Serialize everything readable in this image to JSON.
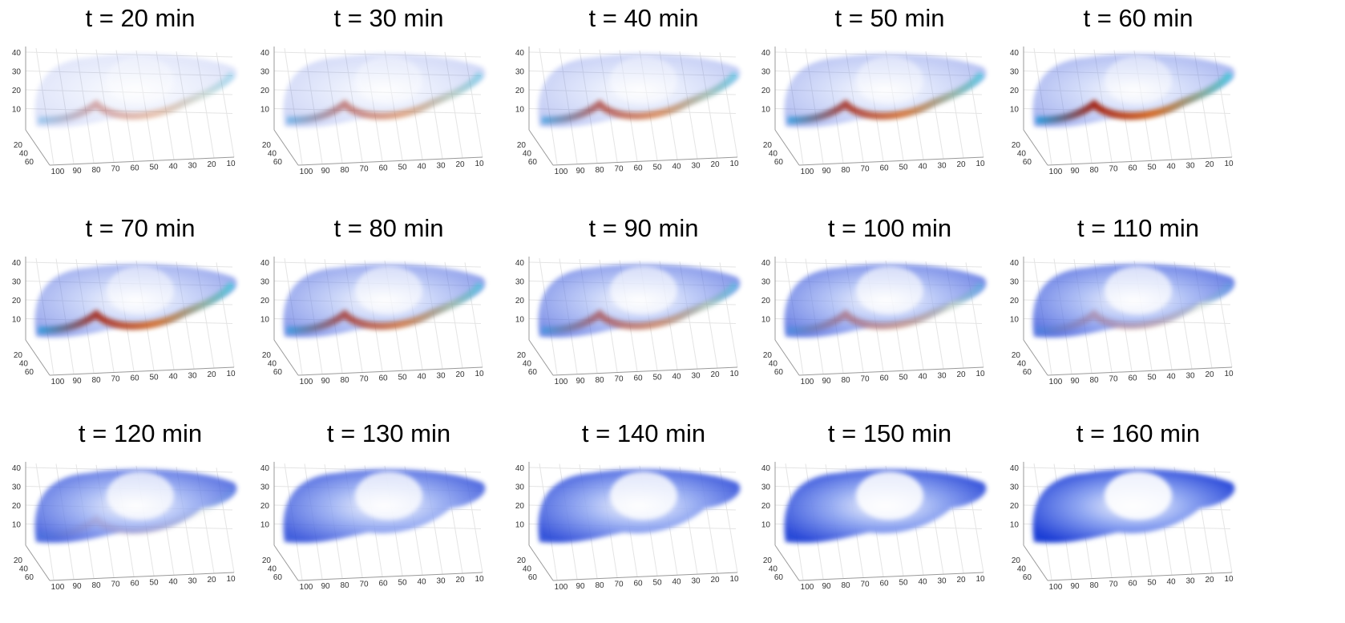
{
  "panels": [
    {
      "title": "t = 20 min"
    },
    {
      "title": "t = 30 min"
    },
    {
      "title": "t = 40 min"
    },
    {
      "title": "t = 50 min"
    },
    {
      "title": "t = 60 min"
    },
    {
      "title": "t = 70 min"
    },
    {
      "title": "t = 80 min"
    },
    {
      "title": "t = 90 min"
    },
    {
      "title": "t = 100 min"
    },
    {
      "title": "t = 110 min"
    },
    {
      "title": "t = 120 min"
    },
    {
      "title": "t = 130 min"
    },
    {
      "title": "t = 140 min"
    },
    {
      "title": "t = 150 min"
    },
    {
      "title": "t = 160 min"
    }
  ],
  "axes": {
    "z_ticks": [
      "40",
      "30",
      "20",
      "10"
    ],
    "depth_ticks": [
      "20",
      "40",
      "60"
    ],
    "x_ticks": [
      "100",
      "90",
      "80",
      "70",
      "60",
      "50",
      "40",
      "30",
      "20",
      "10"
    ]
  }
}
